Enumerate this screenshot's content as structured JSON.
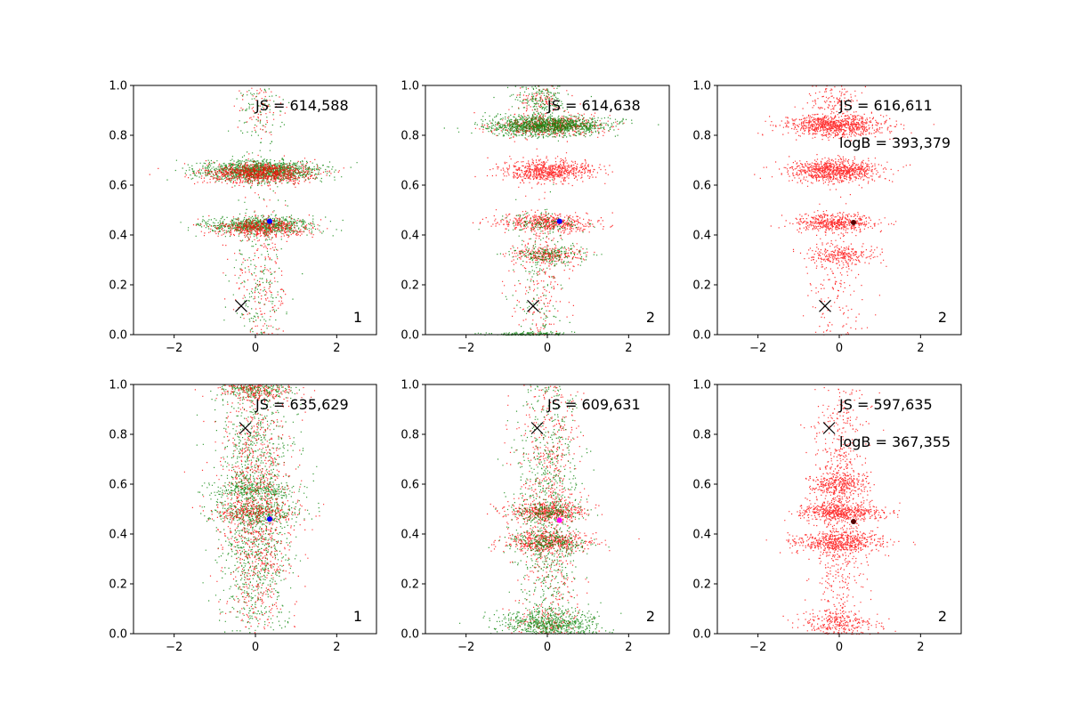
{
  "chart_data": [
    {
      "type": "scatter",
      "panel_id": "r1c1",
      "xlim": [
        -3,
        3
      ],
      "ylim": [
        0,
        1
      ],
      "xticks": [
        -2,
        0,
        2
      ],
      "yticks": [
        0.0,
        0.2,
        0.4,
        0.6,
        0.8,
        1.0
      ],
      "xtick_labels": [
        "−2",
        "0",
        "2"
      ],
      "ytick_labels": [
        "0.0",
        "0.2",
        "0.4",
        "0.6",
        "0.8",
        "1.0"
      ],
      "annotations": {
        "js": "JS = 614,588",
        "logb": "",
        "index": "1"
      },
      "colors": {
        "red": "#ff0000",
        "green": "#008000",
        "blue": "#0000ff",
        "dark": "#550000"
      },
      "cross_marker": {
        "x": -0.35,
        "y": 0.115
      },
      "center_marker": {
        "x": 0.35,
        "y": 0.455,
        "color": "#0000ff"
      },
      "series": [
        {
          "color": "#008000",
          "clusters": [
            {
              "cx": 0.1,
              "cy": 0.66,
              "sx": 0.7,
              "sy": 0.02,
              "n": 1400
            },
            {
              "cx": 0.1,
              "cy": 0.44,
              "sx": 0.65,
              "sy": 0.018,
              "n": 800
            },
            {
              "cx": 0.1,
              "cy": 0.2,
              "sx": 0.35,
              "sy": 0.2,
              "n": 250
            },
            {
              "cx": 0.1,
              "cy": 0.9,
              "sx": 0.3,
              "sy": 0.08,
              "n": 100
            }
          ]
        },
        {
          "color": "#ff0000",
          "clusters": [
            {
              "cx": 0.1,
              "cy": 0.65,
              "sx": 0.7,
              "sy": 0.02,
              "n": 900
            },
            {
              "cx": 0.2,
              "cy": 0.43,
              "sx": 0.6,
              "sy": 0.018,
              "n": 500
            },
            {
              "cx": 0.1,
              "cy": 0.2,
              "sx": 0.35,
              "sy": 0.2,
              "n": 250
            },
            {
              "cx": 0.1,
              "cy": 0.92,
              "sx": 0.3,
              "sy": 0.06,
              "n": 80
            }
          ]
        }
      ]
    },
    {
      "type": "scatter",
      "panel_id": "r1c2",
      "xlim": [
        -3,
        3
      ],
      "ylim": [
        0,
        1
      ],
      "xticks": [
        -2,
        0,
        2
      ],
      "yticks": [
        0.0,
        0.2,
        0.4,
        0.6,
        0.8,
        1.0
      ],
      "xtick_labels": [
        "−2",
        "0",
        "2"
      ],
      "ytick_labels": [
        "0.0",
        "0.2",
        "0.4",
        "0.6",
        "0.8",
        "1.0"
      ],
      "annotations": {
        "js": "JS = 614,638",
        "logb": "",
        "index": "2"
      },
      "colors": {
        "red": "#ff0000",
        "green": "#008000",
        "blue": "#0000ff",
        "dark": "#550000"
      },
      "cross_marker": {
        "x": -0.35,
        "y": 0.115
      },
      "center_marker": {
        "x": 0.3,
        "y": 0.455,
        "color": "#0000ff"
      },
      "series": [
        {
          "color": "#ff0000",
          "clusters": [
            {
              "cx": 0.0,
              "cy": 0.84,
              "sx": 0.65,
              "sy": 0.02,
              "n": 600
            },
            {
              "cx": 0.0,
              "cy": 0.66,
              "sx": 0.55,
              "sy": 0.02,
              "n": 700
            },
            {
              "cx": 0.0,
              "cy": 0.45,
              "sx": 0.6,
              "sy": 0.018,
              "n": 500
            },
            {
              "cx": 0.0,
              "cy": 0.32,
              "sx": 0.45,
              "sy": 0.018,
              "n": 250
            },
            {
              "cx": -0.2,
              "cy": 0.2,
              "sx": 0.35,
              "sy": 0.2,
              "n": 250
            },
            {
              "cx": -0.2,
              "cy": 0.95,
              "sx": 0.3,
              "sy": 0.04,
              "n": 120
            }
          ]
        },
        {
          "color": "#008000",
          "clusters": [
            {
              "cx": 0.0,
              "cy": 0.84,
              "sx": 0.7,
              "sy": 0.02,
              "n": 1300
            },
            {
              "cx": 0.0,
              "cy": 0.32,
              "sx": 0.45,
              "sy": 0.02,
              "n": 200
            },
            {
              "cx": -0.5,
              "cy": 0.0,
              "sx": 0.5,
              "sy": 0.006,
              "n": 300
            },
            {
              "cx": -0.2,
              "cy": 0.45,
              "sx": 0.5,
              "sy": 0.02,
              "n": 120
            },
            {
              "cx": -0.2,
              "cy": 0.95,
              "sx": 0.35,
              "sy": 0.04,
              "n": 200
            },
            {
              "cx": -0.2,
              "cy": 0.2,
              "sx": 0.3,
              "sy": 0.2,
              "n": 150
            }
          ]
        }
      ]
    },
    {
      "type": "scatter",
      "panel_id": "r1c3",
      "xlim": [
        -3,
        3
      ],
      "ylim": [
        0,
        1
      ],
      "xticks": [
        -2,
        0,
        2
      ],
      "yticks": [
        0.0,
        0.2,
        0.4,
        0.6,
        0.8,
        1.0
      ],
      "xtick_labels": [
        "−2",
        "0",
        "2"
      ],
      "ytick_labels": [
        "0.0",
        "0.2",
        "0.4",
        "0.6",
        "0.8",
        "1.0"
      ],
      "annotations": {
        "js": "JS = 616,611",
        "logb": "logB = 393,379",
        "index": "2"
      },
      "colors": {
        "red": "#ff0000",
        "green": "#008000",
        "blue": "#0000ff",
        "dark": "#550000"
      },
      "cross_marker": {
        "x": -0.35,
        "y": 0.115
      },
      "center_marker": {
        "x": 0.35,
        "y": 0.45,
        "color": "#550000"
      },
      "series": [
        {
          "color": "#ff0000",
          "clusters": [
            {
              "cx": -0.1,
              "cy": 0.84,
              "sx": 0.6,
              "sy": 0.022,
              "n": 900
            },
            {
              "cx": -0.1,
              "cy": 0.66,
              "sx": 0.55,
              "sy": 0.022,
              "n": 900
            },
            {
              "cx": -0.1,
              "cy": 0.45,
              "sx": 0.5,
              "sy": 0.018,
              "n": 500
            },
            {
              "cx": 0.0,
              "cy": 0.32,
              "sx": 0.45,
              "sy": 0.02,
              "n": 250
            },
            {
              "cx": -0.1,
              "cy": 0.2,
              "sx": 0.35,
              "sy": 0.2,
              "n": 200
            },
            {
              "cx": -0.2,
              "cy": 0.95,
              "sx": 0.3,
              "sy": 0.04,
              "n": 120
            }
          ]
        }
      ]
    },
    {
      "type": "scatter",
      "panel_id": "r2c1",
      "xlim": [
        -3,
        3
      ],
      "ylim": [
        0,
        1
      ],
      "xticks": [
        -2,
        0,
        2
      ],
      "yticks": [
        0.0,
        0.2,
        0.4,
        0.6,
        0.8,
        1.0
      ],
      "xtick_labels": [
        "−2",
        "0",
        "2"
      ],
      "ytick_labels": [
        "0.0",
        "0.2",
        "0.4",
        "0.6",
        "0.8",
        "1.0"
      ],
      "annotations": {
        "js": "JS = 635,629",
        "logb": "",
        "index": "1"
      },
      "colors": {
        "red": "#ff0000",
        "green": "#008000",
        "blue": "#0000ff",
        "dark": "#550000"
      },
      "cross_marker": {
        "x": -0.25,
        "y": 0.825
      },
      "center_marker": {
        "x": 0.35,
        "y": 0.46,
        "color": "#0000ff"
      },
      "series": [
        {
          "color": "#008000",
          "clusters": [
            {
              "cx": 0.0,
              "cy": 0.5,
              "sx": 0.45,
              "sy": 0.3,
              "n": 1400
            },
            {
              "cx": 0.0,
              "cy": 0.58,
              "sx": 0.55,
              "sy": 0.02,
              "n": 250
            },
            {
              "cx": 0.0,
              "cy": 0.49,
              "sx": 0.55,
              "sy": 0.02,
              "n": 250
            },
            {
              "cx": 0.0,
              "cy": 0.98,
              "sx": 0.5,
              "sy": 0.02,
              "n": 250
            }
          ]
        },
        {
          "color": "#ff0000",
          "clusters": [
            {
              "cx": 0.0,
              "cy": 0.5,
              "sx": 0.45,
              "sy": 0.3,
              "n": 1100
            },
            {
              "cx": 0.0,
              "cy": 0.49,
              "sx": 0.55,
              "sy": 0.02,
              "n": 200
            },
            {
              "cx": 0.0,
              "cy": 0.98,
              "sx": 0.5,
              "sy": 0.02,
              "n": 200
            }
          ]
        }
      ]
    },
    {
      "type": "scatter",
      "panel_id": "r2c2",
      "xlim": [
        -3,
        3
      ],
      "ylim": [
        0,
        1
      ],
      "xticks": [
        -2,
        0,
        2
      ],
      "yticks": [
        0.0,
        0.2,
        0.4,
        0.6,
        0.8,
        1.0
      ],
      "xtick_labels": [
        "−2",
        "0",
        "2"
      ],
      "ytick_labels": [
        "0.0",
        "0.2",
        "0.4",
        "0.6",
        "0.8",
        "1.0"
      ],
      "annotations": {
        "js": "JS = 609,631",
        "logb": "",
        "index": "2"
      },
      "colors": {
        "red": "#ff0000",
        "green": "#008000",
        "blue": "#0000ff",
        "dark": "#550000"
      },
      "cross_marker": {
        "x": -0.25,
        "y": 0.825
      },
      "center_marker": {
        "x": 0.3,
        "y": 0.455,
        "color": "#ff00ff"
      },
      "series": [
        {
          "color": "#ff0000",
          "clusters": [
            {
              "cx": 0.0,
              "cy": 0.49,
              "sx": 0.5,
              "sy": 0.018,
              "n": 450
            },
            {
              "cx": 0.0,
              "cy": 0.37,
              "sx": 0.55,
              "sy": 0.02,
              "n": 450
            },
            {
              "cx": 0.0,
              "cy": 0.6,
              "sx": 0.4,
              "sy": 0.3,
              "n": 700
            },
            {
              "cx": 0.0,
              "cy": 0.05,
              "sx": 0.45,
              "sy": 0.04,
              "n": 150
            }
          ]
        },
        {
          "color": "#008000",
          "clusters": [
            {
              "cx": 0.0,
              "cy": 0.04,
              "sx": 0.6,
              "sy": 0.03,
              "n": 700
            },
            {
              "cx": 0.0,
              "cy": 0.5,
              "sx": 0.4,
              "sy": 0.3,
              "n": 900
            },
            {
              "cx": 0.0,
              "cy": 0.37,
              "sx": 0.5,
              "sy": 0.02,
              "n": 200
            },
            {
              "cx": 0.0,
              "cy": 0.49,
              "sx": 0.45,
              "sy": 0.018,
              "n": 150
            }
          ]
        }
      ]
    },
    {
      "type": "scatter",
      "panel_id": "r2c3",
      "xlim": [
        -3,
        3
      ],
      "ylim": [
        0,
        1
      ],
      "xticks": [
        -2,
        0,
        2
      ],
      "yticks": [
        0.0,
        0.2,
        0.4,
        0.6,
        0.8,
        1.0
      ],
      "xtick_labels": [
        "−2",
        "0",
        "2"
      ],
      "ytick_labels": [
        "0.0",
        "0.2",
        "0.4",
        "0.6",
        "0.8",
        "1.0"
      ],
      "annotations": {
        "js": "JS = 597,635",
        "logb": "logB = 367,355",
        "index": "2"
      },
      "colors": {
        "red": "#ff0000",
        "green": "#008000",
        "blue": "#0000ff",
        "dark": "#550000"
      },
      "cross_marker": {
        "x": -0.25,
        "y": 0.825
      },
      "center_marker": {
        "x": 0.35,
        "y": 0.45,
        "color": "#550000"
      },
      "series": [
        {
          "color": "#ff0000",
          "clusters": [
            {
              "cx": 0.0,
              "cy": 0.49,
              "sx": 0.5,
              "sy": 0.018,
              "n": 500
            },
            {
              "cx": 0.0,
              "cy": 0.37,
              "sx": 0.55,
              "sy": 0.02,
              "n": 500
            },
            {
              "cx": 0.0,
              "cy": 0.6,
              "sx": 0.4,
              "sy": 0.02,
              "n": 250
            },
            {
              "cx": 0.0,
              "cy": 0.55,
              "sx": 0.35,
              "sy": 0.3,
              "n": 900
            },
            {
              "cx": 0.0,
              "cy": 0.04,
              "sx": 0.5,
              "sy": 0.03,
              "n": 300
            }
          ]
        }
      ]
    }
  ]
}
